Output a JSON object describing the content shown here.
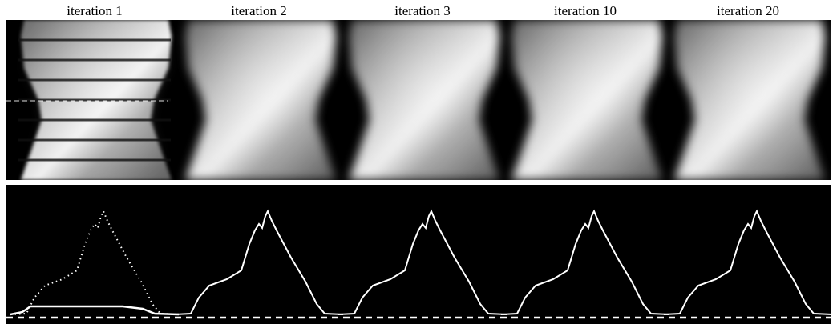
{
  "panels": [
    {
      "label": "iteration 1"
    },
    {
      "label": "iteration 2"
    },
    {
      "label": "iteration 3"
    },
    {
      "label": "iteration 10"
    },
    {
      "label": "iteration 20"
    }
  ]
}
